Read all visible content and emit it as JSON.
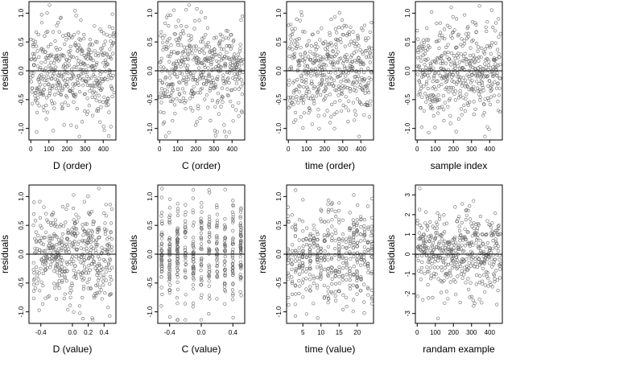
{
  "figure": {
    "layout": "2 rows x 4 columns residual scatter plots"
  },
  "chart_data": [
    {
      "type": "scatter",
      "xlabel": "D (order)",
      "ylabel": "residuals",
      "xticks": [
        "0",
        "100",
        "200",
        "300",
        "400"
      ],
      "xtick_values": [
        0,
        100,
        200,
        300,
        400
      ],
      "xlim": [
        -10,
        470
      ],
      "yticks": [
        "-1.0",
        "-0.5",
        "0.0",
        "0.5",
        "1.0"
      ],
      "ytick_values": [
        -1.0,
        -0.5,
        0.0,
        0.5,
        1.0
      ],
      "ylim": [
        -1.2,
        1.2
      ],
      "reference_line": 0,
      "n_points": 460,
      "x_pattern": "index",
      "x_range": [
        0,
        460
      ],
      "y_spread": 0.42,
      "seed": 11
    },
    {
      "type": "scatter",
      "xlabel": "C (order)",
      "ylabel": "residuals",
      "xticks": [
        "0",
        "100",
        "200",
        "300",
        "400"
      ],
      "xtick_values": [
        0,
        100,
        200,
        300,
        400
      ],
      "xlim": [
        -10,
        470
      ],
      "yticks": [
        "-1.0",
        "-0.5",
        "0.0",
        "0.5",
        "1.0"
      ],
      "ytick_values": [
        -1.0,
        -0.5,
        0.0,
        0.5,
        1.0
      ],
      "ylim": [
        -1.2,
        1.2
      ],
      "reference_line": 0,
      "n_points": 460,
      "x_pattern": "index",
      "x_range": [
        0,
        460
      ],
      "y_spread": 0.42,
      "seed": 23
    },
    {
      "type": "scatter",
      "xlabel": "time (order)",
      "ylabel": "residuals",
      "xticks": [
        "0",
        "100",
        "200",
        "300",
        "400"
      ],
      "xtick_values": [
        0,
        100,
        200,
        300,
        400
      ],
      "xlim": [
        -10,
        470
      ],
      "yticks": [
        "-1.0",
        "-0.5",
        "0.0",
        "0.5",
        "1.0"
      ],
      "ytick_values": [
        -1.0,
        -0.5,
        0.0,
        0.5,
        1.0
      ],
      "ylim": [
        -1.2,
        1.2
      ],
      "reference_line": 0,
      "n_points": 460,
      "x_pattern": "index",
      "x_range": [
        0,
        460
      ],
      "y_spread": 0.42,
      "seed": 37
    },
    {
      "type": "scatter",
      "xlabel": "sample index",
      "ylabel": "residuals",
      "xticks": [
        "0",
        "100",
        "200",
        "300",
        "400"
      ],
      "xtick_values": [
        0,
        100,
        200,
        300,
        400
      ],
      "xlim": [
        -10,
        470
      ],
      "yticks": [
        "-1.0",
        "-0.5",
        "0.0",
        "0.5",
        "1.0"
      ],
      "ytick_values": [
        -1.0,
        -0.5,
        0.0,
        0.5,
        1.0
      ],
      "ylim": [
        -1.2,
        1.2
      ],
      "reference_line": 0,
      "n_points": 460,
      "x_pattern": "index",
      "x_range": [
        0,
        460
      ],
      "y_spread": 0.42,
      "seed": 41
    },
    {
      "type": "scatter",
      "xlabel": "D (value)",
      "ylabel": "residuals",
      "xticks": [
        "-0.4",
        "0.0",
        "0.2",
        "0.4"
      ],
      "xtick_values": [
        -0.4,
        0.0,
        0.2,
        0.4
      ],
      "xlim": [
        -0.55,
        0.55
      ],
      "yticks": [
        "-1.0",
        "-0.5",
        "0.0",
        "0.5",
        "1.0"
      ],
      "ytick_values": [
        -1.0,
        -0.5,
        0.0,
        0.5,
        1.0
      ],
      "ylim": [
        -1.2,
        1.2
      ],
      "reference_line": 0,
      "n_points": 460,
      "x_pattern": "continuous",
      "x_range": [
        -0.5,
        0.5
      ],
      "y_spread": 0.42,
      "seed": 53
    },
    {
      "type": "scatter",
      "xlabel": "C (value)",
      "ylabel": "residuals",
      "xticks": [
        "-0.4",
        "0.0",
        "0.4"
      ],
      "xtick_values": [
        -0.4,
        0.0,
        0.4
      ],
      "xlim": [
        -0.55,
        0.55
      ],
      "yticks": [
        "-1.0",
        "-0.5",
        "0.0",
        "0.5",
        "1.0"
      ],
      "ytick_values": [
        -1.0,
        -0.5,
        0.0,
        0.5,
        1.0
      ],
      "ylim": [
        -1.2,
        1.2
      ],
      "reference_line": 0,
      "n_points": 460,
      "x_pattern": "discrete",
      "x_levels": [
        -0.5,
        -0.4,
        -0.3,
        -0.2,
        -0.1,
        0.0,
        0.1,
        0.2,
        0.3,
        0.4,
        0.5
      ],
      "y_spread": 0.42,
      "seed": 67
    },
    {
      "type": "scatter",
      "xlabel": "time (value)",
      "ylabel": "residuals",
      "xticks": [
        "5",
        "10",
        "15",
        "20"
      ],
      "xtick_values": [
        5,
        10,
        15,
        20
      ],
      "xlim": [
        0.5,
        24.5
      ],
      "yticks": [
        "-1.0",
        "-0.5",
        "0.0",
        "0.5",
        "1.0"
      ],
      "ytick_values": [
        -1.0,
        -0.5,
        0.0,
        0.5,
        1.0
      ],
      "ylim": [
        -1.2,
        1.2
      ],
      "reference_line": 0,
      "n_points": 460,
      "x_pattern": "discrete",
      "x_levels": [
        1,
        2,
        3,
        4,
        5,
        6,
        7,
        8,
        9,
        10,
        11,
        12,
        13,
        14,
        15,
        16,
        17,
        18,
        19,
        20,
        21,
        22,
        23,
        24
      ],
      "y_spread": 0.42,
      "seed": 79
    },
    {
      "type": "scatter",
      "xlabel": "randam example",
      "ylabel": "residuals",
      "xticks": [
        "0",
        "100",
        "200",
        "300",
        "400"
      ],
      "xtick_values": [
        0,
        100,
        200,
        300,
        400
      ],
      "xlim": [
        -10,
        470
      ],
      "yticks": [
        "-3",
        "-2",
        "-1",
        "0",
        "1",
        "2",
        "3"
      ],
      "ytick_values": [
        -3,
        -2,
        -1,
        0,
        1,
        2,
        3
      ],
      "ylim": [
        -3.5,
        3.5
      ],
      "reference_line": 0,
      "n_points": 460,
      "x_pattern": "index",
      "x_range": [
        0,
        460
      ],
      "y_spread": 1.1,
      "seed": 97
    }
  ]
}
